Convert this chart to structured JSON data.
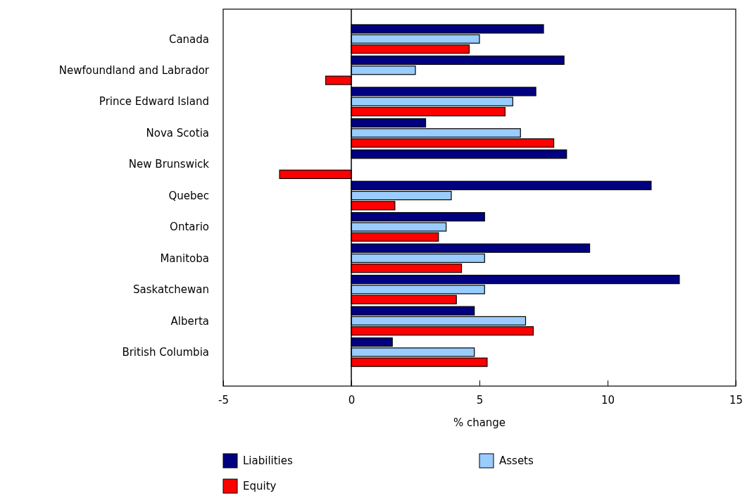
{
  "chart_data": {
    "type": "bar",
    "orientation": "horizontal",
    "xlabel": "% change",
    "categories": [
      "Canada",
      "Newfoundland and Labrador",
      "Prince Edward Island",
      "Nova Scotia",
      "New Brunswick",
      "Quebec",
      "Ontario",
      "Manitoba",
      "Saskatchewan",
      "Alberta",
      "British Columbia"
    ],
    "series": [
      {
        "name": "Liabilities",
        "color": "#000080",
        "values": [
          7.5,
          8.3,
          7.2,
          2.9,
          8.4,
          11.7,
          5.2,
          9.3,
          12.8,
          4.8,
          1.6
        ]
      },
      {
        "name": "Assets",
        "color": "#99ccff",
        "values": [
          5.0,
          2.5,
          6.3,
          6.6,
          null,
          3.9,
          3.7,
          5.2,
          5.2,
          6.8,
          4.8
        ]
      },
      {
        "name": "Equity",
        "color": "#ff0000",
        "values": [
          4.6,
          -1.0,
          6.0,
          7.9,
          -2.8,
          1.7,
          3.4,
          4.3,
          4.1,
          7.1,
          5.3
        ]
      }
    ],
    "xlim": [
      -5,
      15
    ],
    "xticks": [
      -5,
      0,
      5,
      10,
      15
    ],
    "grid": false,
    "ref_lines": [
      {
        "axis": "x",
        "value": 0,
        "color": "#000000"
      }
    ],
    "legend": "bottom"
  }
}
